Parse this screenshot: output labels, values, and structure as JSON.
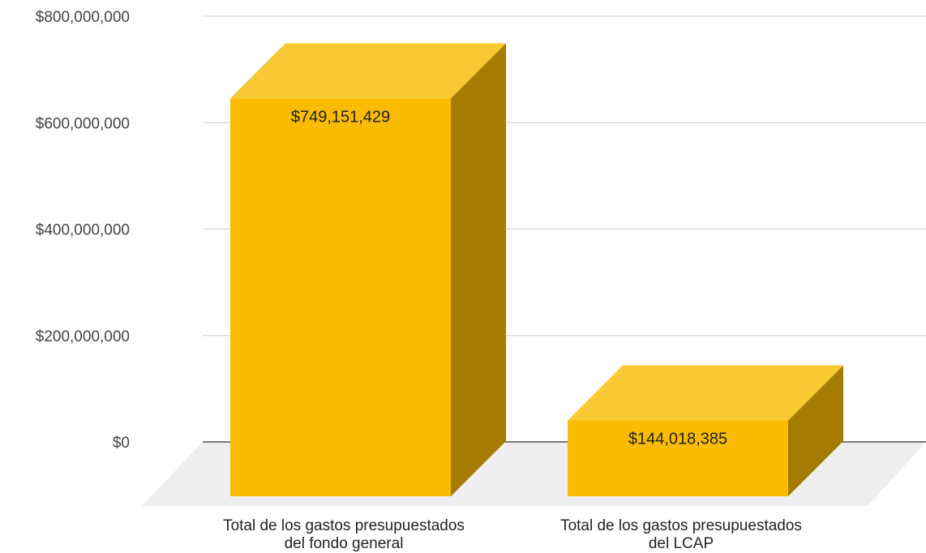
{
  "chart_data": {
    "type": "bar",
    "style": "3d",
    "categories": [
      [
        "Total de los gastos presupuestados",
        "del fondo general"
      ],
      [
        "Total de los gastos presupuestados",
        "del LCAP"
      ]
    ],
    "values": [
      749151429,
      144018385
    ],
    "data_labels": [
      "$749,151,429",
      "$144,018,385"
    ],
    "yticks": [
      0,
      200000000,
      400000000,
      600000000,
      800000000
    ],
    "ytick_labels": [
      "$0",
      "$200,000,000",
      "$400,000,000",
      "$600,000,000",
      "$800,000,000"
    ],
    "ylim": [
      0,
      800000000
    ],
    "grid": true,
    "legend": "none",
    "title": "",
    "xlabel": "",
    "ylabel": "",
    "colors": {
      "front": "#F9BC02",
      "top": "#F9C933",
      "side": "#A67C00",
      "floor": "#EEEEEE",
      "grid": "#CCCCCC",
      "baseline": "#333333"
    }
  }
}
